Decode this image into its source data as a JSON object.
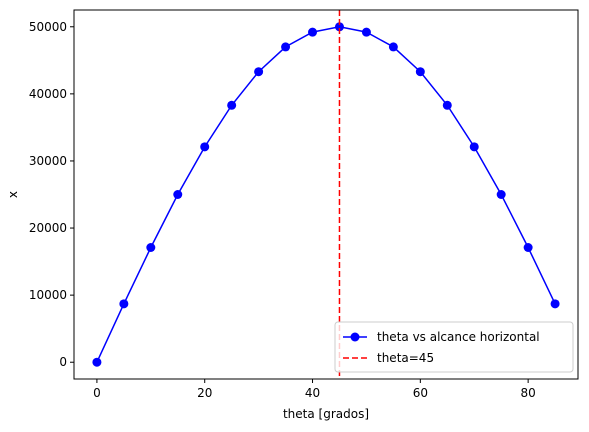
{
  "chart_data": {
    "type": "line",
    "title": "",
    "xlabel": "theta [grados]",
    "ylabel": "x",
    "xlim": [
      -4.25,
      89.25
    ],
    "ylim": [
      -2500,
      52500
    ],
    "xticks": [
      0,
      20,
      40,
      60,
      80
    ],
    "yticks": [
      0,
      10000,
      20000,
      30000,
      40000,
      50000
    ],
    "grid": false,
    "legend_position": "lower right",
    "series": [
      {
        "name": "theta vs alcance horizontal",
        "color": "#0000ff",
        "marker": "circle",
        "line_style": "solid",
        "x": [
          0,
          5,
          10,
          15,
          20,
          25,
          30,
          35,
          40,
          45,
          50,
          55,
          60,
          65,
          70,
          75,
          80,
          85
        ],
        "y": [
          0,
          8700,
          17100,
          25000,
          32100,
          38300,
          43300,
          47000,
          49200,
          50000,
          49200,
          47000,
          43300,
          38300,
          32100,
          25000,
          17100,
          8700
        ]
      }
    ],
    "reference_lines": [
      {
        "name": "theta=45",
        "orientation": "vertical",
        "x": 45,
        "color": "#ff0000",
        "line_style": "dashed"
      }
    ]
  }
}
